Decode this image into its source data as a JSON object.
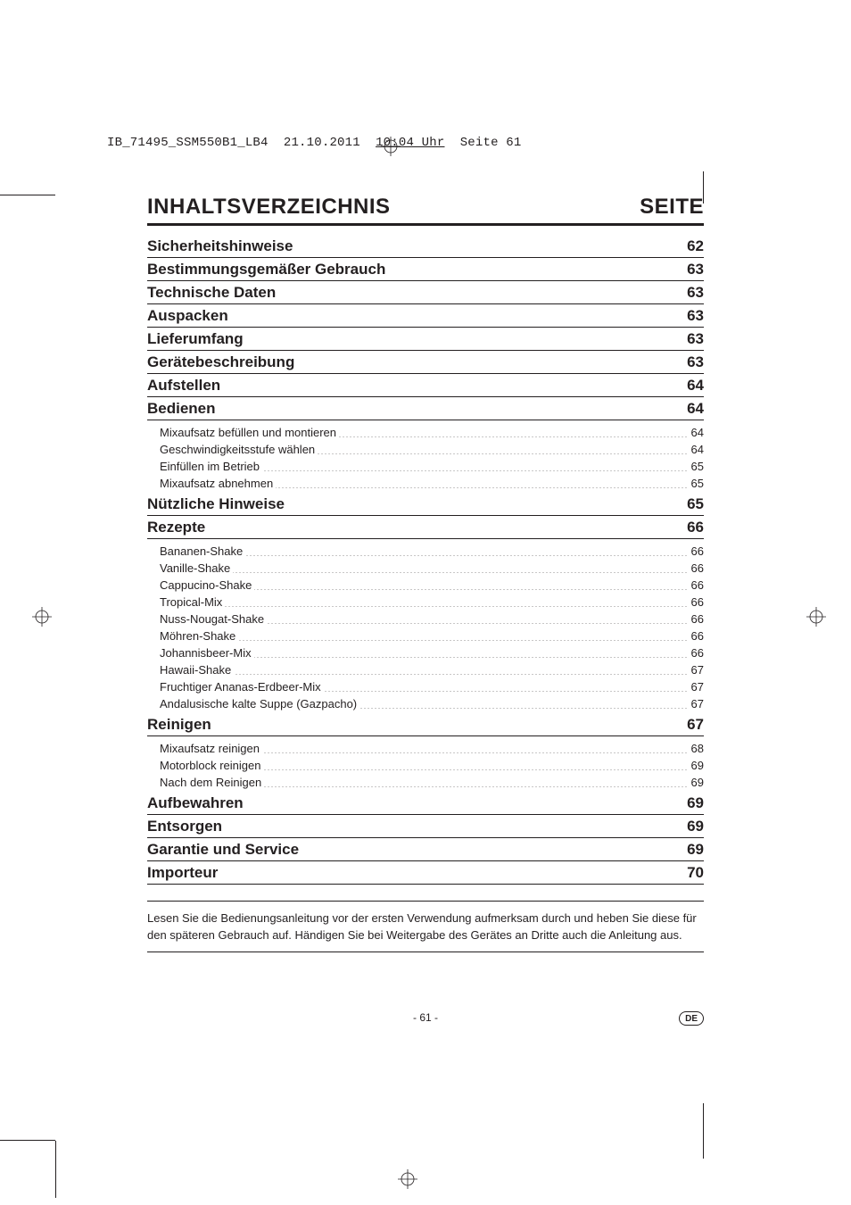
{
  "slug": {
    "file": "IB_71495_SSM550B1_LB4",
    "date": "21.10.2011",
    "time": "10:04 Uhr",
    "page": "Seite 61"
  },
  "heading": {
    "title": "INHALTSVERZEICHNIS",
    "page_label": "SEITE"
  },
  "toc": [
    {
      "label": "Sicherheitshinweise",
      "page": "62",
      "subs": []
    },
    {
      "label": "Bestimmungsgemäßer Gebrauch",
      "page": "63",
      "subs": []
    },
    {
      "label": "Technische Daten",
      "page": "63",
      "subs": []
    },
    {
      "label": "Auspacken",
      "page": "63",
      "subs": []
    },
    {
      "label": "Lieferumfang",
      "page": "63",
      "subs": []
    },
    {
      "label": "Gerätebeschreibung",
      "page": "63",
      "subs": []
    },
    {
      "label": "Aufstellen",
      "page": "64",
      "subs": []
    },
    {
      "label": "Bedienen",
      "page": "64",
      "subs": [
        {
          "label": "Mixaufsatz befüllen und montieren",
          "page": "64"
        },
        {
          "label": "Geschwindigkeitsstufe wählen",
          "page": "64"
        },
        {
          "label": "Einfüllen im Betrieb",
          "page": "65"
        },
        {
          "label": "Mixaufsatz abnehmen",
          "page": "65"
        }
      ]
    },
    {
      "label": "Nützliche Hinweise",
      "page": "65",
      "subs": []
    },
    {
      "label": "Rezepte",
      "page": "66",
      "subs": [
        {
          "label": "Bananen-Shake",
          "page": "66"
        },
        {
          "label": "Vanille-Shake",
          "page": "66"
        },
        {
          "label": "Cappucino-Shake",
          "page": "66"
        },
        {
          "label": "Tropical-Mix",
          "page": "66"
        },
        {
          "label": "Nuss-Nougat-Shake",
          "page": "66"
        },
        {
          "label": "Möhren-Shake",
          "page": "66"
        },
        {
          "label": "Johannisbeer-Mix",
          "page": "66"
        },
        {
          "label": "Hawaii-Shake",
          "page": "67"
        },
        {
          "label": "Fruchtiger Ananas-Erdbeer-Mix",
          "page": "67"
        },
        {
          "label": "Andalusische kalte Suppe (Gazpacho)",
          "page": "67"
        }
      ]
    },
    {
      "label": "Reinigen",
      "page": "67",
      "subs": [
        {
          "label": "Mixaufsatz reinigen",
          "page": "68"
        },
        {
          "label": "Motorblock reinigen",
          "page": "69"
        },
        {
          "label": "Nach dem Reinigen",
          "page": "69"
        }
      ]
    },
    {
      "label": "Aufbewahren",
      "page": "69",
      "subs": []
    },
    {
      "label": "Entsorgen",
      "page": "69",
      "subs": []
    },
    {
      "label": "Garantie und Service",
      "page": "69",
      "subs": []
    },
    {
      "label": "Importeur",
      "page": "70",
      "subs": []
    }
  ],
  "note": "Lesen Sie die Bedienungsanleitung vor der ersten Verwendung aufmerksam durch und heben Sie diese für den späteren Gebrauch auf. Händigen Sie bei Weitergabe des Gerätes an Dritte auch die Anleitung aus.",
  "footer": {
    "page_number": "- 61 -",
    "lang_code": "DE"
  },
  "colors": {
    "text": "#231f20",
    "bg": "#ffffff"
  }
}
